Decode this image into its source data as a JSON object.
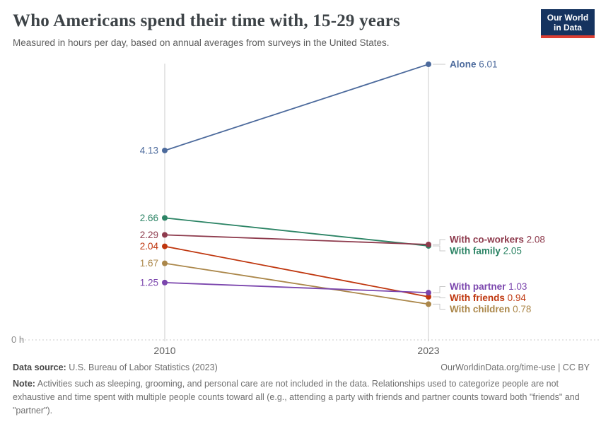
{
  "header": {
    "title": "Who Americans spend their time with, 15-29 years",
    "subtitle": "Measured in hours per day, based on annual averages from surveys in the United States.",
    "logo": {
      "line1": "Our World",
      "line2": "in Data",
      "bg": "#15335f",
      "accent": "#dc3e32"
    }
  },
  "chart_data": {
    "type": "line",
    "subtype": "slope",
    "title": "Who Americans spend their time with, 15-29 years",
    "unit": "hours per day",
    "x_labels": [
      "2010",
      "2023"
    ],
    "ylabel": "0 h",
    "ylim": [
      0,
      6.02
    ],
    "grid": "dotted zero baseline only",
    "legend_position": "end-of-line labels",
    "axis_color": "#cbcbcb",
    "series": [
      {
        "name": "Alone",
        "values": [
          4.13,
          6.01
        ],
        "color": "#4c6a9c"
      },
      {
        "name": "With family",
        "values": [
          2.66,
          2.05
        ],
        "color": "#2c8465"
      },
      {
        "name": "With co-workers",
        "values": [
          2.29,
          2.08
        ],
        "color": "#8e3b4d"
      },
      {
        "name": "With friends",
        "values": [
          2.04,
          0.94
        ],
        "color": "#bf360e"
      },
      {
        "name": "With children",
        "values": [
          1.67,
          0.78
        ],
        "color": "#ab874a"
      },
      {
        "name": "With partner",
        "values": [
          1.25,
          1.03
        ],
        "color": "#7b46ad"
      }
    ]
  },
  "footer": {
    "datasource_label": "Data source:",
    "datasource_value": " U.S. Bureau of Labor Statistics (2023)",
    "license": "OurWorldinData.org/time-use | CC BY",
    "note_label": "Note:",
    "note_value": " Activities such as sleeping, grooming, and personal care are not included in the data. Relationships used to categorize people are not exhaustive and time spent with multiple people counts toward all (e.g., attending a party with friends and partner counts toward both \"friends\" and \"partner\")."
  }
}
